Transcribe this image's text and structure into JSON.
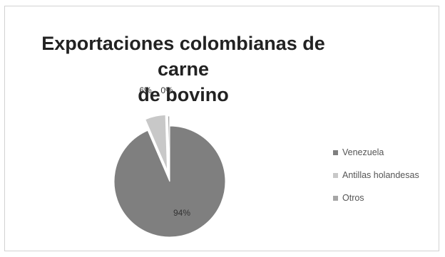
{
  "chart_data": {
    "type": "pie",
    "title": "Exportaciones colombianas de carne de bovino",
    "title_lines": [
      "Exportaciones colombianas de carne",
      "de bovino"
    ],
    "categories": [
      "Venezuela",
      "Antillas holandesas",
      "Otros"
    ],
    "values": [
      94,
      6,
      0.5
    ],
    "data_labels": [
      "94%",
      "6%",
      "0%"
    ],
    "colors": [
      "#7f7f7f",
      "#c8c8c8",
      "#a6a6a6"
    ],
    "exploded": true,
    "legend_position": "right"
  }
}
